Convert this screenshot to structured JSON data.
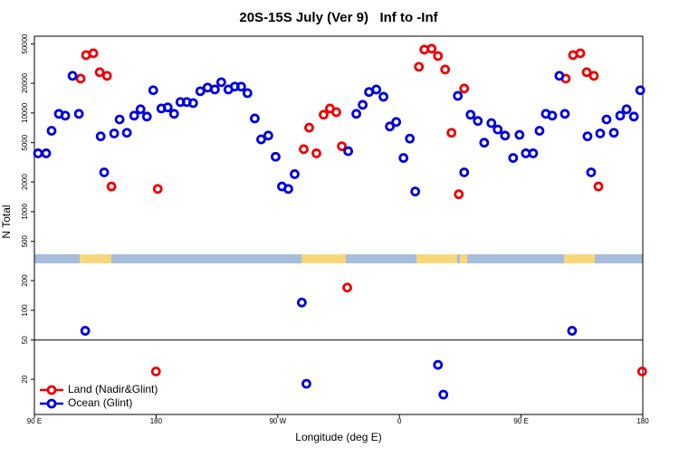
{
  "chart_data": {
    "type": "scatter",
    "title": "20S-15S July (Ver 9)   Inf to -Inf",
    "x_label": "Longitude (deg E)",
    "y_label": "N Total",
    "xlim": [
      90,
      540
    ],
    "xticks": [
      {
        "value": 90,
        "label": "90 E"
      },
      {
        "value": 180,
        "label": "180"
      },
      {
        "value": 270,
        "label": "90 W"
      },
      {
        "value": 360,
        "label": "0"
      },
      {
        "value": 450,
        "label": "90 E"
      },
      {
        "value": 540,
        "label": "180"
      }
    ],
    "ylim": [
      8.8,
      60000
    ],
    "y_scale": "log",
    "yticks": [
      50000,
      20000,
      10000,
      5000,
      2000,
      1000,
      500,
      200,
      100,
      50,
      20
    ],
    "hline": 50,
    "legend": "bottom-left",
    "series": [
      {
        "name": "Land (Nadir&Glint)",
        "color": "#ee0000",
        "x": [
          124.2,
          128.2,
          133.6,
          138.3,
          143.7,
          147.0,
          181.2,
          289.2,
          293.2,
          298.6,
          303.9,
          308.6,
          313.3,
          317.4,
          374.4,
          378.4,
          383.8,
          388.5,
          393.8,
          398.5,
          403.9,
          407.9,
          483.0,
          488.4,
          493.8,
          498.5,
          503.8,
          507.2,
          321.4,
          179.9,
          539.5
        ],
        "values": [
          22300,
          38600,
          40300,
          25900,
          23800,
          1800,
          1700,
          4300,
          7100,
          3900,
          9600,
          11100,
          10200,
          4600,
          29400,
          43900,
          44800,
          37800,
          27600,
          6300,
          1500,
          17700,
          22300,
          38600,
          40300,
          25900,
          23800,
          1800,
          170,
          24,
          24
        ]
      },
      {
        "name": "Ocean (Glint)",
        "color": "#0000dd",
        "x": [
          92.7,
          98.7,
          102.7,
          108.1,
          112.8,
          118.2,
          122.9,
          139.0,
          141.6,
          149.0,
          153.0,
          158.4,
          163.8,
          168.5,
          173.2,
          177.9,
          183.9,
          188.6,
          193.3,
          198.0,
          202.7,
          207.4,
          212.7,
          218.1,
          223.5,
          228.2,
          233.5,
          238.2,
          242.9,
          247.6,
          253.0,
          257.7,
          263.0,
          268.4,
          273.1,
          277.8,
          282.5,
          322.1,
          328.1,
          332.8,
          337.5,
          342.9,
          348.2,
          352.9,
          357.6,
          363.0,
          367.7,
          371.7,
          403.2,
          407.9,
          412.6,
          418.0,
          422.7,
          428.0,
          432.7,
          438.1,
          444.1,
          448.8,
          453.5,
          458.9,
          463.6,
          468.3,
          473.0,
          478.3,
          482.4,
          499.1,
          501.8,
          508.5,
          513.2,
          518.6,
          523.3,
          528.0,
          533.4,
          538.1,
          127.6,
          287.8,
          487.7,
          291.2,
          388.5,
          392.5
        ],
        "values": [
          3900,
          3900,
          6600,
          9800,
          9400,
          23800,
          9800,
          5800,
          2500,
          6200,
          8600,
          6300,
          9400,
          10900,
          9200,
          17000,
          11100,
          11400,
          9800,
          12900,
          12900,
          12600,
          16600,
          18100,
          17300,
          20500,
          17300,
          18500,
          18500,
          15900,
          8800,
          5400,
          5900,
          3600,
          1800,
          1700,
          2400,
          4100,
          9800,
          12100,
          16300,
          17300,
          14600,
          7300,
          8100,
          3500,
          5500,
          1600,
          14900,
          2500,
          9600,
          8300,
          5000,
          7900,
          6800,
          5900,
          3500,
          6000,
          3900,
          3900,
          6600,
          9800,
          9400,
          23800,
          9800,
          5800,
          2500,
          6200,
          8600,
          6300,
          9400,
          10900,
          9200,
          17000,
          62,
          120,
          62,
          18,
          28,
          14
        ]
      }
    ]
  }
}
